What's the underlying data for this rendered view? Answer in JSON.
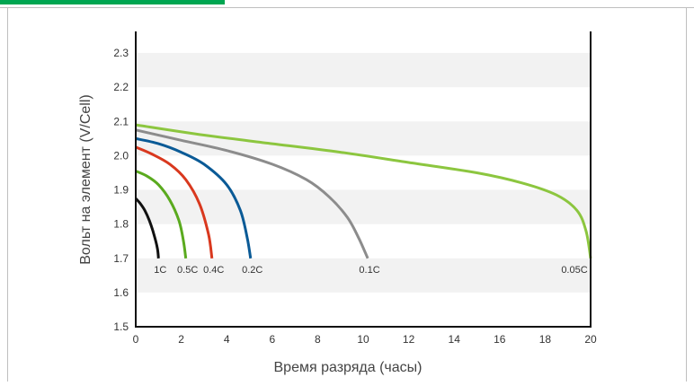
{
  "chart_data": {
    "type": "line",
    "xlabel": "Время разряда (часы)",
    "ylabel": "Вольт на элемент (V/Cell)",
    "xlim": [
      0,
      20
    ],
    "ylim": [
      1.5,
      2.35
    ],
    "x_ticks": [
      0,
      2,
      4,
      6,
      8,
      10,
      12,
      14,
      16,
      18,
      20
    ],
    "y_ticks": [
      1.5,
      1.6,
      1.7,
      1.8,
      1.9,
      2.0,
      2.1,
      2.2,
      2.3
    ],
    "y_tick_labels": [
      "1.5",
      "1.6",
      "1.7",
      "1.8",
      "1.9",
      "2.0",
      "2.1",
      "2.2",
      "2.3"
    ],
    "grid": "alternating horizontal bands",
    "colors": {
      "accent": "#00a651",
      "band": "#f2f2f2",
      "axis": "#111111",
      "text": "#333333"
    },
    "series": [
      {
        "name": "1C",
        "color": "#111111",
        "end_x": 1.0,
        "v0": 1.875,
        "points": [
          [
            0,
            1.875
          ],
          [
            0.2,
            1.86
          ],
          [
            0.4,
            1.84
          ],
          [
            0.6,
            1.81
          ],
          [
            0.8,
            1.77
          ],
          [
            0.95,
            1.73
          ],
          [
            1.0,
            1.7
          ]
        ]
      },
      {
        "name": "0.5C",
        "color": "#5aaa1e",
        "end_x": 2.2,
        "v0": 1.955,
        "points": [
          [
            0,
            1.955
          ],
          [
            0.5,
            1.94
          ],
          [
            1.0,
            1.915
          ],
          [
            1.5,
            1.87
          ],
          [
            1.9,
            1.81
          ],
          [
            2.1,
            1.75
          ],
          [
            2.2,
            1.7
          ]
        ]
      },
      {
        "name": "0.4C",
        "color": "#d9381e",
        "end_x": 3.35,
        "v0": 2.025,
        "points": [
          [
            0,
            2.025
          ],
          [
            0.7,
            2.005
          ],
          [
            1.5,
            1.975
          ],
          [
            2.2,
            1.93
          ],
          [
            2.8,
            1.86
          ],
          [
            3.2,
            1.77
          ],
          [
            3.35,
            1.7
          ]
        ]
      },
      {
        "name": "0.2C",
        "color": "#0a5a96",
        "end_x": 5.05,
        "v0": 2.05,
        "points": [
          [
            0,
            2.05
          ],
          [
            1.0,
            2.035
          ],
          [
            2.0,
            2.01
          ],
          [
            3.0,
            1.975
          ],
          [
            4.0,
            1.915
          ],
          [
            4.6,
            1.84
          ],
          [
            4.9,
            1.76
          ],
          [
            5.05,
            1.7
          ]
        ]
      },
      {
        "name": "0.1C",
        "color": "#8c8c8c",
        "end_x": 10.2,
        "v0": 2.075,
        "points": [
          [
            0,
            2.075
          ],
          [
            2.0,
            2.045
          ],
          [
            4.0,
            2.015
          ],
          [
            6.0,
            1.975
          ],
          [
            7.5,
            1.93
          ],
          [
            8.5,
            1.88
          ],
          [
            9.3,
            1.82
          ],
          [
            9.8,
            1.76
          ],
          [
            10.2,
            1.7
          ]
        ]
      },
      {
        "name": "0.05C",
        "color": "#8cc63f",
        "end_x": 20.0,
        "v0": 2.09,
        "points": [
          [
            0,
            2.09
          ],
          [
            3.0,
            2.06
          ],
          [
            6.0,
            2.035
          ],
          [
            9.0,
            2.01
          ],
          [
            12.0,
            1.98
          ],
          [
            15.0,
            1.95
          ],
          [
            17.0,
            1.92
          ],
          [
            18.5,
            1.885
          ],
          [
            19.4,
            1.84
          ],
          [
            19.8,
            1.78
          ],
          [
            20.0,
            1.7
          ]
        ]
      }
    ],
    "end_labels": [
      "1C",
      "0.5C",
      "0.4C",
      "0.2C",
      "0.1C",
      "0.05C"
    ]
  }
}
